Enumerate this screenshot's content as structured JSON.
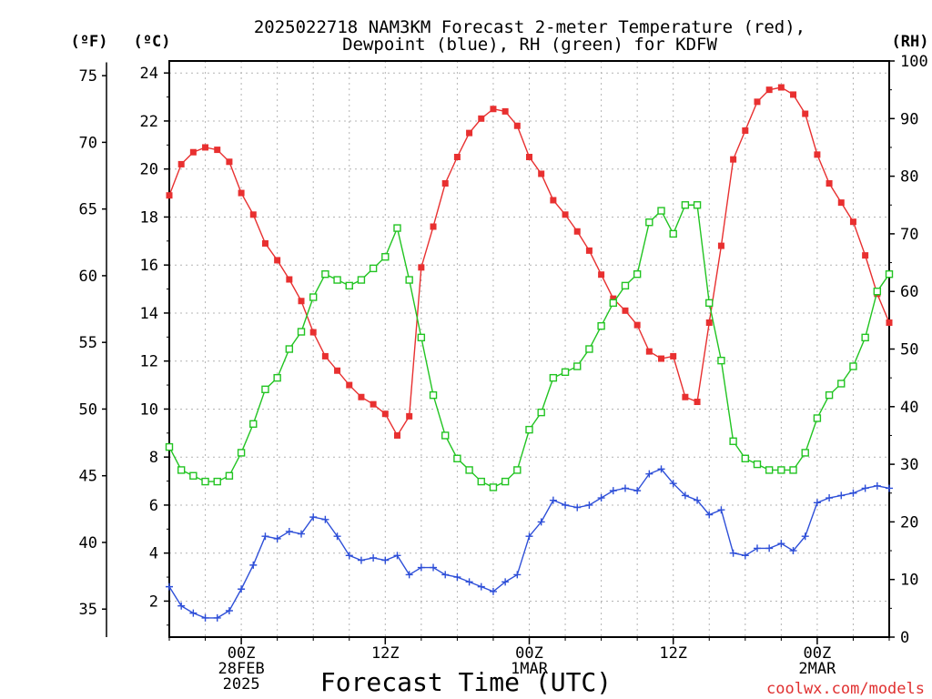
{
  "title_line1": "2025022718 NAM3KM Forecast 2-meter Temperature (red),",
  "title_line2": "Dewpoint (blue), RH (green) for KDFW",
  "unit_f": "(ºF)",
  "unit_c": "(ºC)",
  "unit_rh": "(RH)",
  "xlabel": "Forecast Time (UTC)",
  "credit": "coolwx.com/models",
  "colors": {
    "temperature": "#e83030",
    "dewpoint": "#2e4fd8",
    "rh": "#22c422",
    "axis": "#000000",
    "grid": "#b4b4b4"
  },
  "chart_data": {
    "type": "line",
    "title": "2025022718 NAM3KM Forecast 2-meter Temperature (red), Dewpoint (blue), RH (green) for KDFW",
    "xlabel": "Forecast Time (UTC)",
    "x_unit": "hours since 2025-02-27 18Z",
    "x": [
      0,
      1,
      2,
      3,
      4,
      5,
      6,
      7,
      8,
      9,
      10,
      11,
      12,
      13,
      14,
      15,
      16,
      17,
      18,
      19,
      20,
      21,
      22,
      23,
      24,
      25,
      26,
      27,
      28,
      29,
      30,
      31,
      32,
      33,
      34,
      35,
      36,
      37,
      38,
      39,
      40,
      41,
      42,
      43,
      44,
      45,
      46,
      47,
      48,
      49,
      50,
      51,
      52,
      53,
      54,
      55,
      56,
      57,
      58,
      59,
      60
    ],
    "xlim": [
      0,
      60
    ],
    "x_ticks": [
      {
        "x": 6,
        "lines": [
          "00Z",
          "28FEB",
          "2025"
        ]
      },
      {
        "x": 18,
        "lines": [
          "12Z"
        ]
      },
      {
        "x": 30,
        "lines": [
          "00Z",
          "1MAR"
        ]
      },
      {
        "x": 42,
        "lines": [
          "12Z"
        ]
      },
      {
        "x": 54,
        "lines": [
          "00Z",
          "2MAR"
        ]
      }
    ],
    "left_axis_c": {
      "ylim": [
        0.5,
        24.5
      ],
      "ticks": [
        2,
        4,
        6,
        8,
        10,
        12,
        14,
        16,
        18,
        20,
        22,
        24
      ]
    },
    "left_axis_f": {
      "ticks": [
        35,
        40,
        45,
        50,
        55,
        60,
        65,
        70,
        75
      ]
    },
    "right_axis_rh": {
      "ylim": [
        0,
        100
      ],
      "ticks": [
        0,
        10,
        20,
        30,
        40,
        50,
        60,
        70,
        80,
        90,
        100
      ]
    },
    "grid": true,
    "series": [
      {
        "name": "Temperature",
        "axis": "C",
        "marker": "filled-square",
        "values": [
          18.9,
          20.2,
          20.7,
          20.9,
          20.8,
          20.3,
          19.0,
          18.1,
          16.9,
          16.2,
          15.4,
          14.5,
          13.2,
          12.2,
          11.6,
          11.0,
          10.5,
          10.2,
          9.8,
          8.9,
          9.7,
          15.9,
          17.6,
          19.4,
          20.5,
          21.5,
          22.1,
          22.5,
          22.4,
          21.8,
          20.5,
          19.8,
          18.7,
          18.1,
          17.4,
          16.6,
          15.6,
          14.6,
          14.1,
          13.5,
          12.4,
          12.1,
          12.2,
          10.5,
          10.3,
          13.6,
          16.8,
          20.4,
          21.6,
          22.8,
          23.3,
          23.4,
          23.1,
          22.3,
          20.6,
          19.4,
          18.6,
          17.8,
          16.4,
          14.8,
          13.6
        ]
      },
      {
        "name": "Dewpoint",
        "axis": "C",
        "marker": "plus",
        "values": [
          2.6,
          1.8,
          1.5,
          1.3,
          1.3,
          1.6,
          2.5,
          3.5,
          4.7,
          4.6,
          4.9,
          4.8,
          5.5,
          5.4,
          4.7,
          3.9,
          3.7,
          3.8,
          3.7,
          3.9,
          3.1,
          3.4,
          3.4,
          3.1,
          3.0,
          2.8,
          2.6,
          2.4,
          2.8,
          3.1,
          4.7,
          5.3,
          6.2,
          6.0,
          5.9,
          6.0,
          6.3,
          6.6,
          6.7,
          6.6,
          7.3,
          7.5,
          6.9,
          6.4,
          6.2,
          5.6,
          5.8,
          4.0,
          3.9,
          4.2,
          4.2,
          4.4,
          4.1,
          4.7,
          6.1,
          6.3,
          6.4,
          6.5,
          6.7,
          6.8,
          6.7
        ]
      },
      {
        "name": "RH",
        "axis": "RH",
        "marker": "open-square",
        "values": [
          33,
          29,
          28,
          27,
          27,
          28,
          32,
          37,
          43,
          45,
          50,
          53,
          59,
          63,
          62,
          61,
          62,
          64,
          66,
          71,
          62,
          52,
          42,
          35,
          31,
          29,
          27,
          26,
          27,
          29,
          36,
          39,
          45,
          46,
          47,
          50,
          54,
          58,
          61,
          63,
          72,
          74,
          70,
          75,
          75,
          58,
          48,
          34,
          31,
          30,
          29,
          29,
          29,
          32,
          38,
          42,
          44,
          47,
          52,
          60,
          63
        ]
      }
    ]
  }
}
